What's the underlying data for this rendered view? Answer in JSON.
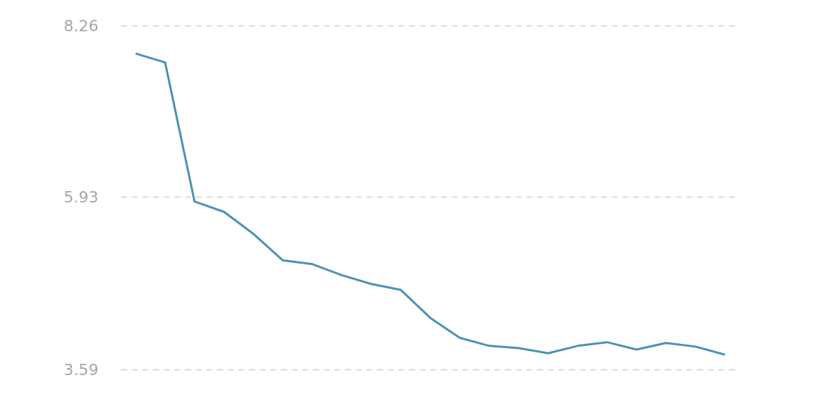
{
  "chart_data": {
    "type": "line",
    "categories": [
      null,
      null,
      null,
      null,
      null,
      null,
      null,
      null,
      null,
      null,
      null,
      null,
      null,
      null,
      null,
      null,
      null,
      null,
      null,
      null,
      null
    ],
    "series": [
      {
        "color": "#4a93b3",
        "values": [
          7.88,
          7.76,
          5.87,
          5.73,
          5.43,
          5.07,
          5.02,
          4.87,
          4.75,
          4.67,
          4.29,
          4.02,
          3.91,
          3.88,
          3.81,
          3.91,
          3.96,
          3.86,
          3.95,
          3.9,
          3.79
        ]
      }
    ],
    "ylim": [
      3.59,
      8.26
    ],
    "yticks": [
      3.59,
      5.93,
      8.26
    ],
    "grid": "y",
    "tick_labels": "y",
    "marker": "none",
    "line_style": "solid"
  }
}
